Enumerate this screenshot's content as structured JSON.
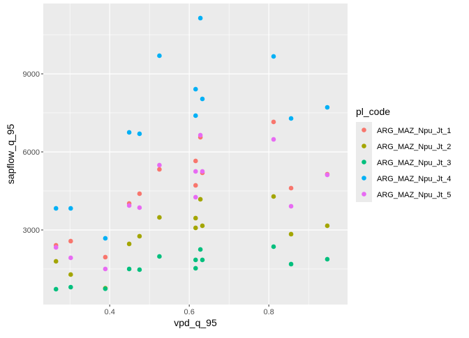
{
  "chart_data": {
    "type": "scatter",
    "xlabel": "vpd_q_95",
    "ylabel": "sapflow_q_95",
    "xlim": [
      0.233,
      0.998
    ],
    "ylim": [
      133,
      11705
    ],
    "x_ticks": [
      0.4,
      0.6,
      0.8
    ],
    "x_tick_labels": [
      "0.4",
      "0.6",
      "0.8"
    ],
    "x_minor": [
      0.3,
      0.5,
      0.7,
      0.9
    ],
    "y_ticks": [
      3000,
      6000,
      9000
    ],
    "y_tick_labels": [
      "3000",
      "6000",
      "9000"
    ],
    "y_minor": [
      1500,
      4500,
      7500,
      10500
    ],
    "grid": true,
    "legend": {
      "title": "pl_code",
      "placement": "right"
    },
    "series": [
      {
        "name": "ARG_MAZ_Npu_Jt_1",
        "color": "#F8766D",
        "points": [
          [
            0.265,
            2411
          ],
          [
            0.302,
            2571
          ],
          [
            0.389,
            1955
          ],
          [
            0.449,
            4018
          ],
          [
            0.475,
            4393
          ],
          [
            0.525,
            5330
          ],
          [
            0.616,
            5652
          ],
          [
            0.616,
            4714
          ],
          [
            0.628,
            6563
          ],
          [
            0.633,
            5196
          ],
          [
            0.812,
            7152
          ],
          [
            0.856,
            4607
          ],
          [
            0.947,
            5143
          ]
        ]
      },
      {
        "name": "ARG_MAZ_Npu_Jt_2",
        "color": "#A3A500",
        "points": [
          [
            0.265,
            1795
          ],
          [
            0.302,
            1286
          ],
          [
            0.389,
            760
          ],
          [
            0.449,
            2464
          ],
          [
            0.475,
            2759
          ],
          [
            0.525,
            3482
          ],
          [
            0.616,
            3455
          ],
          [
            0.616,
            3080
          ],
          [
            0.628,
            4179
          ],
          [
            0.633,
            3161
          ],
          [
            0.812,
            4286
          ],
          [
            0.856,
            2839
          ],
          [
            0.947,
            3161
          ]
        ]
      },
      {
        "name": "ARG_MAZ_Npu_Jt_3",
        "color": "#00BF7D",
        "points": [
          [
            0.265,
            723
          ],
          [
            0.302,
            803
          ],
          [
            0.389,
            740
          ],
          [
            0.449,
            1500
          ],
          [
            0.475,
            1473
          ],
          [
            0.525,
            1982
          ],
          [
            0.616,
            1848
          ],
          [
            0.616,
            1527
          ],
          [
            0.628,
            2250
          ],
          [
            0.633,
            1848
          ],
          [
            0.812,
            2357
          ],
          [
            0.856,
            1687
          ],
          [
            0.947,
            1875
          ]
        ]
      },
      {
        "name": "ARG_MAZ_Npu_Jt_4",
        "color": "#00B0F6",
        "points": [
          [
            0.265,
            3830
          ],
          [
            0.302,
            3830
          ],
          [
            0.389,
            2679
          ],
          [
            0.449,
            6750
          ],
          [
            0.475,
            6697
          ],
          [
            0.525,
            9697
          ],
          [
            0.616,
            8411
          ],
          [
            0.616,
            7393
          ],
          [
            0.628,
            11143
          ],
          [
            0.633,
            8036
          ],
          [
            0.812,
            9670
          ],
          [
            0.856,
            7286
          ],
          [
            0.947,
            7714
          ]
        ]
      },
      {
        "name": "ARG_MAZ_Npu_Jt_5",
        "color": "#E76BF3",
        "points": [
          [
            0.265,
            2330
          ],
          [
            0.302,
            1929
          ],
          [
            0.389,
            1500
          ],
          [
            0.449,
            3938
          ],
          [
            0.475,
            3857
          ],
          [
            0.525,
            5491
          ],
          [
            0.616,
            5250
          ],
          [
            0.616,
            4259
          ],
          [
            0.628,
            6643
          ],
          [
            0.633,
            5250
          ],
          [
            0.812,
            6482
          ],
          [
            0.856,
            3911
          ],
          [
            0.947,
            5116
          ]
        ]
      }
    ]
  }
}
